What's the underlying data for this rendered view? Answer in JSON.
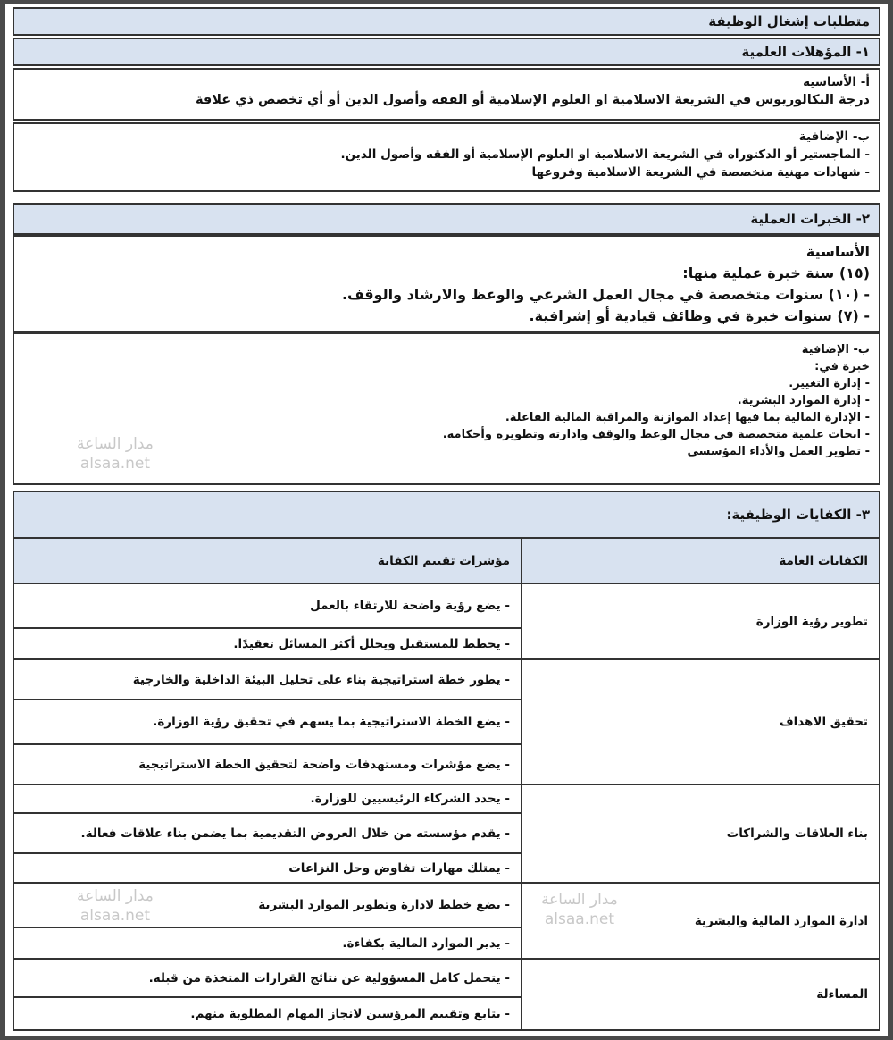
{
  "title": "متطلبات إشغال الوظيفة",
  "qualifications": {
    "heading": "١- المؤهلات العلمية",
    "basic": {
      "label": "أ- الأساسية",
      "text": "درجة البكالوريوس في الشريعة الاسلامية او العلوم الإسلامية أو الفقه وأصول الدين أو أي تخصص ذي علاقة"
    },
    "additional": {
      "label": "ب- الإضافية",
      "items": [
        "- الماجستير أو الدكتوراه في الشريعة الاسلامية او العلوم الإسلامية أو الفقه وأصول الدين.",
        "- شهادات مهنية متخصصة في الشريعة الاسلامية وفروعها"
      ]
    }
  },
  "experience": {
    "heading": "٢- الخبرات العملية",
    "basic": {
      "label": "الأساسية",
      "intro": "(١٥) سنة خبرة عملية منها:",
      "items": [
        "- (١٠) سنوات متخصصة في مجال العمل الشرعي والوعظ والارشاد والوقف.",
        "- (٧) سنوات خبرة في وظائف قيادية أو إشرافية."
      ]
    },
    "additional": {
      "label": "ب- الإضافية",
      "intro": "خبرة في:",
      "items": [
        "- إدارة التغيير.",
        "- إدارة الموارد البشرية.",
        "- الإدارة المالية بما فيها إعداد الموازنة والمراقبة المالية الفاعلة.",
        "- ابحاث علمية متخصصة في مجال الوعظ والوقف وادارته وتطويره وأحكامه.",
        "- تطوير العمل والأداء المؤسسي"
      ]
    }
  },
  "competencies": {
    "heading": "٣- الكفايات الوظيفية:",
    "columns": [
      "الكفايات العامة",
      "مؤشرات تقييم الكفاية"
    ],
    "rows": [
      {
        "name": "تطوير رؤية الوزارة",
        "indicators": [
          "- يضع رؤية واضحة للارتقاء بالعمل",
          "- يخطط للمستقبل ويحلل أكثر المسائل تعقيدًا."
        ]
      },
      {
        "name": "تحقيق الاهداف",
        "indicators": [
          "- يطور خطة استراتيجية بناء على تحليل البيئة الداخلية والخارجية",
          "- يضع الخطة الاستراتيجية بما يسهم في تحقيق رؤية الوزارة.",
          "- يضع مؤشرات ومستهدفات واضحة لتحقيق الخطة الاستراتيجية"
        ]
      },
      {
        "name": "بناء العلاقات والشراكات",
        "indicators": [
          "- يحدد الشركاء الرئيسيين للوزارة.",
          "- يقدم مؤسسته من خلال العروض التقديمية بما يضمن بناء علاقات فعالة.",
          "- يمتلك مهارات تفاوض وحل النزاعات"
        ]
      },
      {
        "name": "ادارة الموارد المالية والبشرية",
        "indicators": [
          "- يضع خطط لادارة وتطوير الموارد البشرية",
          "- يدير الموارد المالية بكفاءة."
        ]
      },
      {
        "name": "المساءلة",
        "indicators": [
          "- يتحمل كامل المسؤولية عن نتائج القرارات المتخذة من قبله.",
          "- يتابع وتقييم المرؤسين لانجاز المهام المطلوبة منهم."
        ]
      }
    ]
  },
  "watermark": {
    "line1": "مدار الساعة",
    "line2": "alsaa.net"
  }
}
